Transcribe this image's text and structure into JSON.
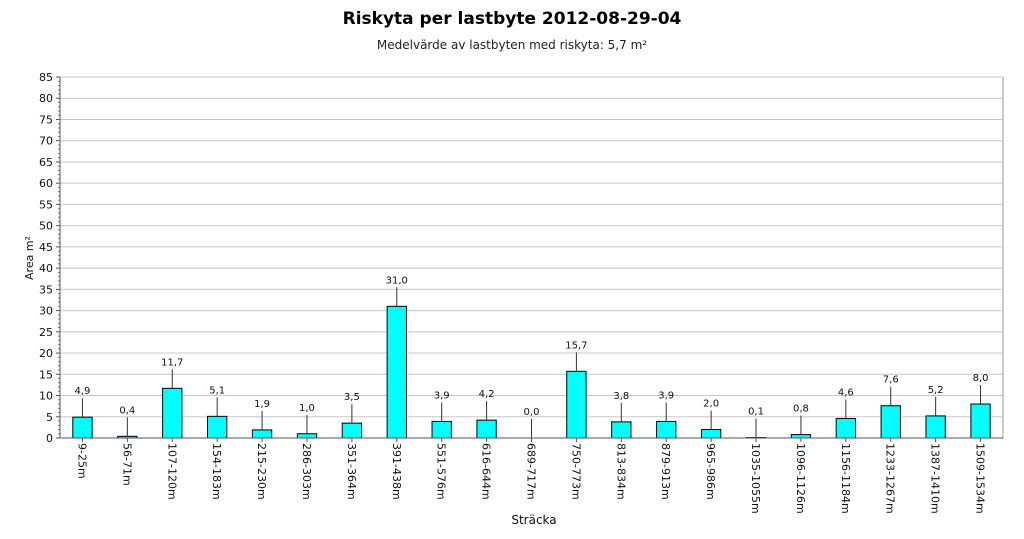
{
  "chart_data": {
    "type": "bar",
    "title": "Riskyta per lastbyte 2012-08-29-04",
    "subtitle": "Medelvärde av lastbyten med riskyta: 5,7 m²",
    "xlabel": "Sträcka",
    "ylabel": "Area m²",
    "ylim": [
      0,
      85
    ],
    "yticks": [
      0,
      5,
      10,
      15,
      20,
      25,
      30,
      35,
      40,
      45,
      50,
      55,
      60,
      65,
      70,
      75,
      80,
      85
    ],
    "grid": true,
    "bar_color": "#00ffff",
    "categories": [
      "9-25m",
      "56-71m",
      "107-120m",
      "154-183m",
      "215-230m",
      "286-303m",
      "351-364m",
      "391-438m",
      "551-576m",
      "616-644m",
      "689-717m",
      "750-773m",
      "813-834m",
      "879-913m",
      "965-986m",
      "1035-1055m",
      "1096-1126m",
      "1156-1184m",
      "1233-1267m",
      "1387-1410m",
      "1509-1534m"
    ],
    "values": [
      4.9,
      0.4,
      11.7,
      5.1,
      1.9,
      1.0,
      3.5,
      31.0,
      3.9,
      4.2,
      0.0,
      15.7,
      3.8,
      3.9,
      2.0,
      0.1,
      0.8,
      4.6,
      7.6,
      5.2,
      8.0
    ],
    "data_labels": [
      "4,9",
      "0,4",
      "11,7",
      "5,1",
      "1,9",
      "1,0",
      "3,5",
      "31,0",
      "3,9",
      "4,2",
      "0,0",
      "15,7",
      "3,8",
      "3,9",
      "2,0",
      "0,1",
      "0,8",
      "4,6",
      "7,6",
      "5,2",
      "8,0"
    ]
  }
}
